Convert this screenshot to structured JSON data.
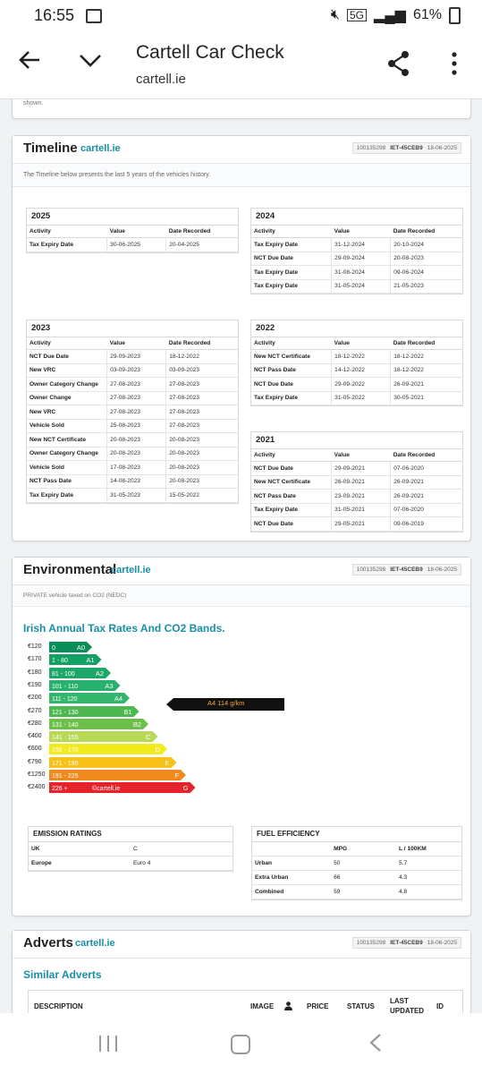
{
  "status_bar": {
    "time": "16:55",
    "battery": "61%",
    "network": "5G"
  },
  "app_bar": {
    "title": "Cartell Car Check",
    "subtitle": "cartell.ie"
  },
  "prev_card": {
    "tail_text": "shown."
  },
  "timeline": {
    "heading": "Timeline",
    "brand": "cartell.ie",
    "meta": {
      "id": "100135298",
      "ref": "IET-45CEB9",
      "date": "18-06-2025"
    },
    "description": "The Timeline below presents the last 5 years of the vehicles history.",
    "columns": [
      "Activity",
      "Value",
      "Date Recorded"
    ],
    "years": [
      {
        "year": "2025",
        "rows": [
          [
            "Tax Expiry Date",
            "30-06-2025",
            "20-04-2025"
          ]
        ]
      },
      {
        "year": "2024",
        "rows": [
          [
            "Tax Expiry Date",
            "31-12-2024",
            "20-10-2024"
          ],
          [
            "NCT Due Date",
            "29-09-2024",
            "20-08-2023"
          ],
          [
            "Tax Expiry Date",
            "31-08-2024",
            "09-06-2024"
          ],
          [
            "Tax Expiry Date",
            "31-05-2024",
            "21-05-2023"
          ]
        ]
      },
      {
        "year": "2023",
        "rows": [
          [
            "NCT Due Date",
            "29-09-2023",
            "18-12-2022"
          ],
          [
            "New VRC",
            "03-09-2023",
            "03-09-2023"
          ],
          [
            "Owner Category Change",
            "27-08-2023",
            "27-08-2023"
          ],
          [
            "Owner Change",
            "27-08-2023",
            "27-08-2023"
          ],
          [
            "New VRC",
            "27-08-2023",
            "27-08-2023"
          ],
          [
            "Vehicle Sold",
            "25-08-2023",
            "27-08-2023"
          ],
          [
            "New NCT Certificate",
            "20-08-2023",
            "20-08-2023"
          ],
          [
            "Owner Category Change",
            "20-08-2023",
            "20-08-2023"
          ],
          [
            "Vehicle Sold",
            "17-08-2023",
            "20-08-2023"
          ],
          [
            "NCT Pass Date",
            "14-08-2023",
            "20-08-2023"
          ],
          [
            "Tax Expiry Date",
            "31-05-2023",
            "15-05-2022"
          ]
        ]
      },
      {
        "year": "2022",
        "rows": [
          [
            "New NCT Certificate",
            "18-12-2022",
            "18-12-2022"
          ],
          [
            "NCT Pass Date",
            "14-12-2022",
            "18-12-2022"
          ],
          [
            "NCT Due Date",
            "29-09-2022",
            "26-09-2021"
          ],
          [
            "Tax Expiry Date",
            "31-05-2022",
            "30-05-2021"
          ]
        ]
      },
      {
        "year": "2021",
        "rows": [
          [
            "NCT Due Date",
            "29-09-2021",
            "07-06-2020"
          ],
          [
            "New NCT Certificate",
            "26-09-2021",
            "26-09-2021"
          ],
          [
            "NCT Pass Date",
            "23-09-2021",
            "26-09-2021"
          ],
          [
            "Tax Expiry Date",
            "31-05-2021",
            "07-06-2020"
          ],
          [
            "NCT Due Date",
            "29-05-2021",
            "09-06-2019"
          ]
        ]
      }
    ]
  },
  "environmental": {
    "heading": "Environmental",
    "brand": "cartell.ie",
    "meta": {
      "id": "100135298",
      "ref": "IET-45CEB9",
      "date": "18-06-2025"
    },
    "subtitle": "PRIVATE vehicle taxed on CO2 (NEDC)",
    "chart_title": "Irish Annual Tax Rates And CO2 Bands.",
    "bands": [
      {
        "cost": "€120",
        "range": "0",
        "band": "A0",
        "color": "#0a8f5a"
      },
      {
        "cost": "€170",
        "range": "1 - 80",
        "band": "A1",
        "color": "#12a063"
      },
      {
        "cost": "€180",
        "range": "81 - 100",
        "band": "A2",
        "color": "#1da86a"
      },
      {
        "cost": "€190",
        "range": "101 - 110",
        "band": "A3",
        "color": "#27b06e"
      },
      {
        "cost": "€200",
        "range": "111 - 120",
        "band": "A4",
        "color": "#33b56c"
      },
      {
        "cost": "€270",
        "range": "121 - 130",
        "band": "B1",
        "color": "#4cb850"
      },
      {
        "cost": "€280",
        "range": "131 - 140",
        "band": "B2",
        "color": "#6cc04a"
      },
      {
        "cost": "€400",
        "range": "141 - 155",
        "band": "C",
        "color": "#b7d957"
      },
      {
        "cost": "€600",
        "range": "156 - 170",
        "band": "D",
        "color": "#f1ea1c"
      },
      {
        "cost": "€790",
        "range": "171 - 190",
        "band": "E",
        "color": "#f8c11a"
      },
      {
        "cost": "€1250",
        "range": "191 - 225",
        "band": "F",
        "color": "#f08a1f"
      },
      {
        "cost": "€2400",
        "range": "226 +",
        "band": "G",
        "color": "#e5232a",
        "watermark": "©cartell.ie"
      }
    ],
    "indicator": {
      "label": "A4 114 g/km",
      "band_index": 4
    },
    "emission_ratings": {
      "heading": "EMISSION RATINGS",
      "rows": [
        [
          "UK",
          "C"
        ],
        [
          "Europe",
          "Euro 4"
        ]
      ]
    },
    "fuel_efficiency": {
      "heading": "FUEL EFFICIENCY",
      "columns": [
        "",
        "MPG",
        "L / 100KM"
      ],
      "rows": [
        [
          "Urban",
          "50",
          "5.7"
        ],
        [
          "Extra Urban",
          "66",
          "4.3"
        ],
        [
          "Combined",
          "59",
          "4.8"
        ]
      ]
    }
  },
  "adverts": {
    "heading": "Adverts",
    "brand": "cartell.ie",
    "meta": {
      "id": "100135298",
      "ref": "IET-45CEB9",
      "date": "18-06-2025"
    },
    "similar_title": "Similar Adverts",
    "columns": {
      "description": "DESCRIPTION",
      "image": "IMAGE",
      "price": "PRICE",
      "status": "STATUS",
      "last_updated": "LAST UPDATED",
      "id": "ID"
    }
  }
}
